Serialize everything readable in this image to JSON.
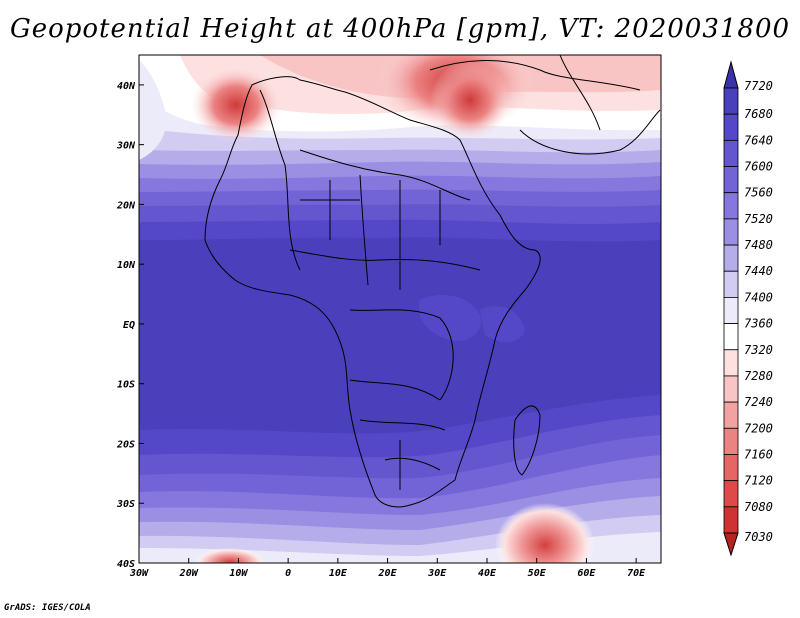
{
  "title": "Geopotential Height at 400hPa [gpm], VT: 2020031800",
  "credit": "GrADS: IGES/COLA",
  "map": {
    "lon_range": [
      -30,
      75
    ],
    "lat_range": [
      -40,
      45
    ],
    "lon_ticks": [
      {
        "value": -30,
        "label": "30W"
      },
      {
        "value": -20,
        "label": "20W"
      },
      {
        "value": -10,
        "label": "10W"
      },
      {
        "value": 0,
        "label": "0"
      },
      {
        "value": 10,
        "label": "10E"
      },
      {
        "value": 20,
        "label": "20E"
      },
      {
        "value": 30,
        "label": "30E"
      },
      {
        "value": 40,
        "label": "40E"
      },
      {
        "value": 50,
        "label": "50E"
      },
      {
        "value": 60,
        "label": "60E"
      },
      {
        "value": 70,
        "label": "70E"
      }
    ],
    "lat_ticks": [
      {
        "value": 40,
        "label": "40N"
      },
      {
        "value": 30,
        "label": "30N"
      },
      {
        "value": 20,
        "label": "20N"
      },
      {
        "value": 10,
        "label": "10N"
      },
      {
        "value": 0,
        "label": "EQ"
      },
      {
        "value": -10,
        "label": "10S"
      },
      {
        "value": -20,
        "label": "20S"
      },
      {
        "value": -30,
        "label": "30S"
      },
      {
        "value": -40,
        "label": "40S"
      }
    ]
  },
  "colorbar": {
    "levels": [
      7720,
      7680,
      7640,
      7600,
      7560,
      7520,
      7480,
      7440,
      7400,
      7360,
      7320,
      7280,
      7240,
      7200,
      7160,
      7120,
      7080,
      7030
    ],
    "colors": [
      "#3c32a8",
      "#4a40bb",
      "#5548c8",
      "#6356cf",
      "#7264d6",
      "#8577dd",
      "#9b8fe3",
      "#b5acea",
      "#d2ccf3",
      "#ecebf9",
      "#ffffff",
      "#fde0e0",
      "#f8c4c4",
      "#f2a2a2",
      "#ec8383",
      "#e66565",
      "#de4949",
      "#cf3232",
      "#b82222"
    ]
  }
}
